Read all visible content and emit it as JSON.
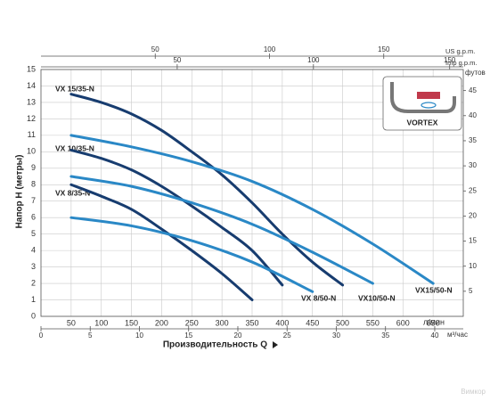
{
  "chart_data": {
    "type": "line",
    "y_label": "Напор H (метры)",
    "x_label": "Производительность Q",
    "xunit": "л/мин",
    "xlim": [
      0,
      700
    ],
    "xticks": [
      50,
      100,
      150,
      200,
      250,
      300,
      350,
      400,
      450,
      500,
      550,
      600,
      650
    ],
    "ylim": [
      0,
      15
    ],
    "yticks": [
      0,
      1,
      2,
      3,
      4,
      5,
      6,
      7,
      8,
      9,
      10,
      11,
      12,
      13,
      14,
      15
    ],
    "grid": true,
    "x2": {
      "unit": "м³/час",
      "lim": [
        0,
        42.9
      ],
      "ticks": [
        0,
        5,
        10,
        15,
        20,
        25,
        30,
        35,
        40
      ]
    },
    "x3": {
      "unit": "US g.p.m.",
      "lim": [
        0,
        184.8
      ],
      "ticks": [
        50,
        100,
        150
      ]
    },
    "x4": {
      "unit": "Imp g.p.m.",
      "lim": [
        0,
        155
      ],
      "ticks": [
        50,
        100,
        150
      ]
    },
    "y2": {
      "unit": "футов",
      "lim": [
        0,
        49.2
      ],
      "ticks": [
        5,
        10,
        15,
        20,
        25,
        30,
        35,
        40,
        45
      ]
    },
    "inset_label": "VORTEX",
    "watermark": "Вимкор",
    "series": [
      {
        "name": "VX 15/35-N",
        "color": "#173c6f",
        "x": [
          50,
          100,
          150,
          200,
          250,
          300,
          350,
          400,
          450,
          500
        ],
        "values": [
          13.5,
          13.0,
          12.3,
          11.3,
          10.0,
          8.6,
          6.9,
          5.0,
          3.3,
          1.9
        ]
      },
      {
        "name": "VX 10/35-N",
        "color": "#173c6f",
        "x": [
          50,
          100,
          150,
          200,
          250,
          300,
          350,
          400
        ],
        "values": [
          10.1,
          9.6,
          8.9,
          7.9,
          6.7,
          5.4,
          4.0,
          1.9
        ]
      },
      {
        "name": "VX 8/35-N",
        "color": "#173c6f",
        "x": [
          50,
          100,
          150,
          200,
          250,
          300,
          350
        ],
        "values": [
          8.0,
          7.3,
          6.5,
          5.3,
          4.0,
          2.6,
          1.0
        ]
      },
      {
        "name": "VX 8/50-N",
        "color": "#2a88c6",
        "x": [
          50,
          150,
          250,
          350,
          450
        ],
        "values": [
          6.0,
          5.5,
          4.6,
          3.3,
          1.5
        ]
      },
      {
        "name": "VX10/50-N",
        "color": "#2a88c6",
        "x": [
          50,
          150,
          250,
          350,
          450,
          550
        ],
        "values": [
          8.5,
          7.9,
          6.9,
          5.6,
          3.9,
          2.0
        ]
      },
      {
        "name": "VX15/50-N",
        "color": "#2a88c6",
        "x": [
          50,
          150,
          250,
          350,
          450,
          550,
          650
        ],
        "values": [
          11.0,
          10.3,
          9.4,
          8.2,
          6.5,
          4.4,
          2.0
        ]
      }
    ]
  }
}
